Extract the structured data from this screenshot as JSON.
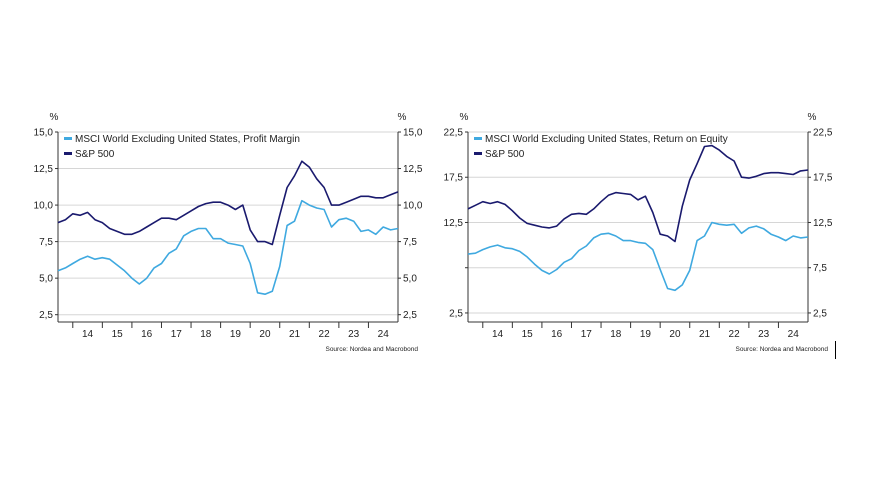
{
  "colors": {
    "msci": "#3fa9e0",
    "sp500": "#1a1a6e",
    "grid": "#d6d6d6",
    "axis": "#333333",
    "text": "#222222"
  },
  "chart_data": [
    {
      "type": "line",
      "title": "",
      "unit_left": "%",
      "unit_right": "%",
      "source": "Source: Nordea and Macrobond",
      "ylim": [
        2.0,
        15.0
      ],
      "xlim": [
        2013.5,
        2025.0
      ],
      "yticks": [
        "15,0",
        "12,5",
        "10,0",
        "7,5",
        "5,0",
        "2,5"
      ],
      "ytick_values": [
        15.0,
        12.5,
        10.0,
        7.5,
        5.0,
        2.5
      ],
      "xticks": [
        "14",
        "15",
        "16",
        "17",
        "18",
        "19",
        "20",
        "21",
        "22",
        "23",
        "24"
      ],
      "grid": "horizontal",
      "legend_position": "top-left",
      "series": [
        {
          "name": "MSCI World Excluding United States, Profit Margin",
          "color_key": "msci",
          "x": [
            2013.5,
            2013.75,
            2014.0,
            2014.25,
            2014.5,
            2014.75,
            2015.0,
            2015.25,
            2015.5,
            2015.75,
            2016.0,
            2016.25,
            2016.5,
            2016.75,
            2017.0,
            2017.25,
            2017.5,
            2017.75,
            2018.0,
            2018.25,
            2018.5,
            2018.75,
            2019.0,
            2019.25,
            2019.5,
            2019.75,
            2020.0,
            2020.25,
            2020.5,
            2020.75,
            2021.0,
            2021.25,
            2021.5,
            2021.75,
            2022.0,
            2022.25,
            2022.5,
            2022.75,
            2023.0,
            2023.25,
            2023.5,
            2023.75,
            2024.0,
            2024.25,
            2024.5,
            2024.75,
            2025.0
          ],
          "y": [
            5.5,
            5.7,
            6.0,
            6.3,
            6.5,
            6.3,
            6.4,
            6.3,
            5.9,
            5.5,
            5.0,
            4.6,
            5.0,
            5.7,
            6.0,
            6.7,
            7.0,
            7.9,
            8.2,
            8.4,
            8.4,
            7.7,
            7.7,
            7.4,
            7.3,
            7.2,
            6.0,
            4.0,
            3.9,
            4.1,
            5.8,
            8.6,
            8.9,
            10.3,
            10.0,
            9.8,
            9.7,
            8.5,
            9.0,
            9.1,
            8.9,
            8.2,
            8.3,
            8.0,
            8.5,
            8.3,
            8.4
          ]
        },
        {
          "name": "S&P 500",
          "color_key": "sp500",
          "x": [
            2013.5,
            2013.75,
            2014.0,
            2014.25,
            2014.5,
            2014.75,
            2015.0,
            2015.25,
            2015.5,
            2015.75,
            2016.0,
            2016.25,
            2016.5,
            2016.75,
            2017.0,
            2017.25,
            2017.5,
            2017.75,
            2018.0,
            2018.25,
            2018.5,
            2018.75,
            2019.0,
            2019.25,
            2019.5,
            2019.75,
            2020.0,
            2020.25,
            2020.5,
            2020.75,
            2021.0,
            2021.25,
            2021.5,
            2021.75,
            2022.0,
            2022.25,
            2022.5,
            2022.75,
            2023.0,
            2023.25,
            2023.5,
            2023.75,
            2024.0,
            2024.25,
            2024.5,
            2024.75,
            2025.0
          ],
          "y": [
            8.8,
            9.0,
            9.4,
            9.3,
            9.5,
            9.0,
            8.8,
            8.4,
            8.2,
            8.0,
            8.0,
            8.2,
            8.5,
            8.8,
            9.1,
            9.1,
            9.0,
            9.3,
            9.6,
            9.9,
            10.1,
            10.2,
            10.2,
            10.0,
            9.7,
            10.0,
            8.3,
            7.5,
            7.5,
            7.3,
            9.3,
            11.2,
            12.0,
            13.0,
            12.6,
            11.8,
            11.2,
            10.0,
            10.0,
            10.2,
            10.4,
            10.6,
            10.6,
            10.5,
            10.5,
            10.7,
            10.9
          ]
        }
      ]
    },
    {
      "type": "line",
      "title": "",
      "unit_left": "%",
      "unit_right": "%",
      "source": "Source: Nordea and Macrobond",
      "ylim": [
        1.5,
        22.5
      ],
      "xlim": [
        2013.5,
        2025.0
      ],
      "yticks": [
        "22,5",
        "17,5",
        "12,5",
        "7,5",
        "2,5"
      ],
      "ytick_values": [
        22.5,
        17.5,
        12.5,
        7.5,
        2.5
      ],
      "yticks_left": [
        "22,5",
        "17,5",
        "12,5",
        "2,5"
      ],
      "yticks_right": [
        "22,5",
        "17,5",
        "12,5",
        "7,5",
        "2,5"
      ],
      "xticks": [
        "14",
        "15",
        "16",
        "17",
        "18",
        "19",
        "20",
        "21",
        "22",
        "23",
        "24"
      ],
      "grid": "horizontal",
      "legend_position": "top-left",
      "series": [
        {
          "name": "MSCI World Excluding United States, Return on Equity",
          "color_key": "msci",
          "x": [
            2013.5,
            2013.75,
            2014.0,
            2014.25,
            2014.5,
            2014.75,
            2015.0,
            2015.25,
            2015.5,
            2015.75,
            2016.0,
            2016.25,
            2016.5,
            2016.75,
            2017.0,
            2017.25,
            2017.5,
            2017.75,
            2018.0,
            2018.25,
            2018.5,
            2018.75,
            2019.0,
            2019.25,
            2019.5,
            2019.75,
            2020.0,
            2020.25,
            2020.5,
            2020.75,
            2021.0,
            2021.25,
            2021.5,
            2021.75,
            2022.0,
            2022.25,
            2022.5,
            2022.75,
            2023.0,
            2023.25,
            2023.5,
            2023.75,
            2024.0,
            2024.25,
            2024.5,
            2024.75,
            2025.0
          ],
          "y": [
            9.0,
            9.1,
            9.5,
            9.8,
            10.0,
            9.7,
            9.6,
            9.3,
            8.7,
            7.9,
            7.2,
            6.8,
            7.3,
            8.1,
            8.5,
            9.4,
            9.9,
            10.8,
            11.2,
            11.3,
            11.0,
            10.5,
            10.5,
            10.3,
            10.2,
            9.5,
            7.3,
            5.2,
            5.0,
            5.6,
            7.2,
            10.5,
            11.0,
            12.5,
            12.3,
            12.2,
            12.3,
            11.3,
            11.9,
            12.1,
            11.8,
            11.2,
            10.9,
            10.5,
            11.0,
            10.8,
            10.9
          ]
        },
        {
          "name": "S&P 500",
          "color_key": "sp500",
          "x": [
            2013.5,
            2013.75,
            2014.0,
            2014.25,
            2014.5,
            2014.75,
            2015.0,
            2015.25,
            2015.5,
            2015.75,
            2016.0,
            2016.25,
            2016.5,
            2016.75,
            2017.0,
            2017.25,
            2017.5,
            2017.75,
            2018.0,
            2018.25,
            2018.5,
            2018.75,
            2019.0,
            2019.25,
            2019.5,
            2019.75,
            2020.0,
            2020.25,
            2020.5,
            2020.75,
            2021.0,
            2021.25,
            2021.5,
            2021.75,
            2022.0,
            2022.25,
            2022.5,
            2022.75,
            2023.0,
            2023.25,
            2023.5,
            2023.75,
            2024.0,
            2024.25,
            2024.5,
            2024.75,
            2025.0
          ],
          "y": [
            14.0,
            14.4,
            14.8,
            14.6,
            14.8,
            14.5,
            13.8,
            13.0,
            12.4,
            12.2,
            12.0,
            11.9,
            12.1,
            12.9,
            13.4,
            13.5,
            13.4,
            14.0,
            14.8,
            15.5,
            15.8,
            15.7,
            15.6,
            15.0,
            15.4,
            13.6,
            11.2,
            11.0,
            10.4,
            14.3,
            17.2,
            19.0,
            20.9,
            21.0,
            20.5,
            19.8,
            19.3,
            17.5,
            17.4,
            17.6,
            17.9,
            18.0,
            18.0,
            17.9,
            17.8,
            18.2,
            18.3
          ]
        }
      ]
    }
  ]
}
